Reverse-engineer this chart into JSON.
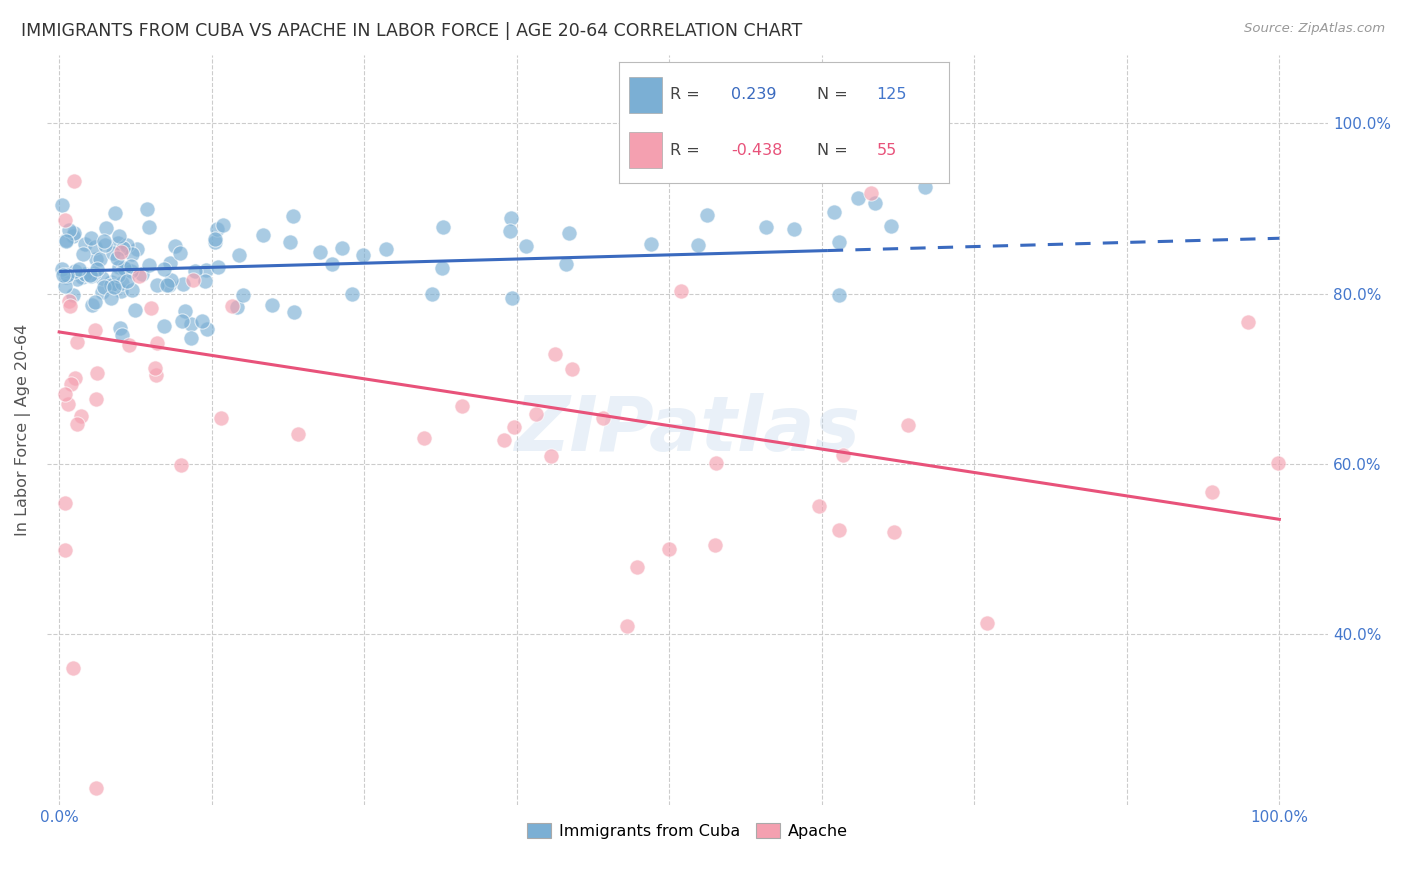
{
  "title": "IMMIGRANTS FROM CUBA VS APACHE IN LABOR FORCE | AGE 20-64 CORRELATION CHART",
  "source": "Source: ZipAtlas.com",
  "ylabel": "In Labor Force | Age 20-64",
  "background_color": "#ffffff",
  "grid_color": "#cccccc",
  "watermark": "ZIPatlas",
  "legend_R1": "0.239",
  "legend_N1": "125",
  "legend_R2": "-0.438",
  "legend_N2": "55",
  "blue_color": "#7bafd4",
  "pink_color": "#f4a0b0",
  "blue_line_color": "#3a6abf",
  "pink_line_color": "#e8527a",
  "title_color": "#333333",
  "axis_label_color": "#555555",
  "tick_color": "#4477cc",
  "xlim": [
    -0.01,
    1.04
  ],
  "ylim": [
    0.2,
    1.08
  ]
}
